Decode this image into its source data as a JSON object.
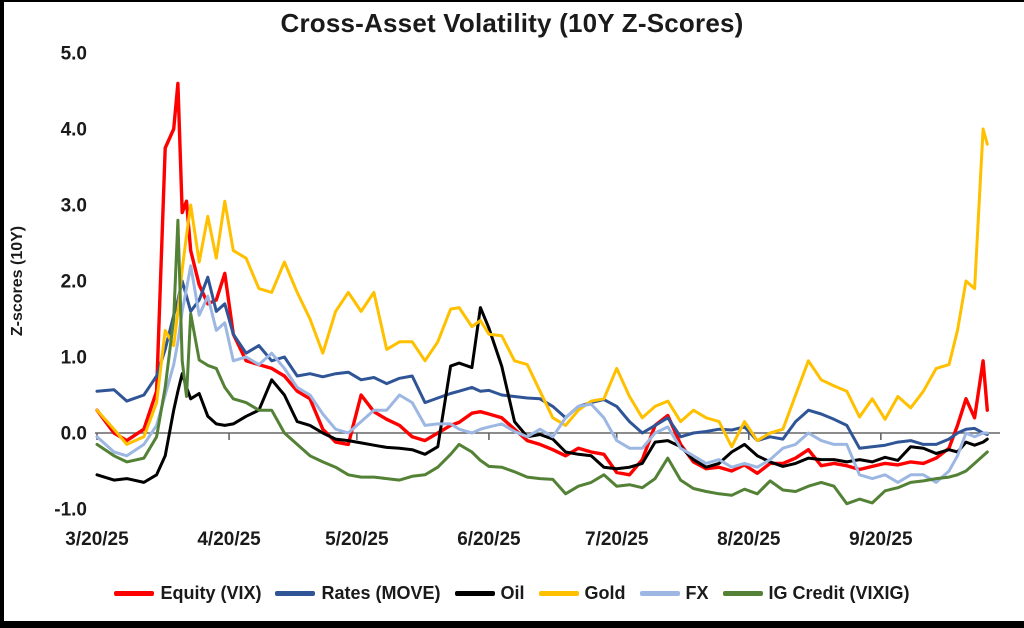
{
  "title": "Cross-Asset Volatility (10Y Z-Scores)",
  "y_axis": {
    "label": "Z-scores (10Y)",
    "ticks": [
      {
        "label": "5.0",
        "value": 5.0
      },
      {
        "label": "4.0",
        "value": 4.0
      },
      {
        "label": "3.0",
        "value": 3.0
      },
      {
        "label": "2.0",
        "value": 2.0
      },
      {
        "label": "1.0",
        "value": 1.0
      },
      {
        "label": "0.0",
        "value": 0.0
      },
      {
        "label": "-1.0",
        "value": -1.0
      }
    ]
  },
  "x_axis": {
    "ticks": [
      {
        "label": "3/20/25",
        "day": 0
      },
      {
        "label": "4/20/25",
        "day": 31
      },
      {
        "label": "5/20/25",
        "day": 61
      },
      {
        "label": "6/20/25",
        "day": 92
      },
      {
        "label": "7/20/25",
        "day": 122
      },
      {
        "label": "8/20/25",
        "day": 153
      },
      {
        "label": "9/20/25",
        "day": 184
      }
    ]
  },
  "colors": {
    "equity": "#FF0000",
    "rates": "#2F5597",
    "oil": "#000000",
    "gold": "#FFC000",
    "fx": "#9DB7E3",
    "ig_credit": "#538135",
    "zero_line": "#666666",
    "text": "#1a1a1a"
  },
  "chart_data": {
    "type": "line",
    "title": "Cross-Asset Volatility (10Y Z-Scores)",
    "ylabel": "Z-scores (10Y)",
    "ylim": [
      -1.0,
      5.0
    ],
    "grid": false,
    "zero_line": true,
    "legend_position": "bottom",
    "x_unit": "days since 3/20/25",
    "x_days": [
      0,
      4,
      7,
      11,
      14,
      16,
      18,
      19,
      20,
      21,
      22,
      24,
      26,
      28,
      30,
      32,
      35,
      38,
      41,
      44,
      47,
      50,
      53,
      56,
      59,
      62,
      65,
      68,
      71,
      74,
      77,
      80,
      83,
      85,
      88,
      90,
      92,
      95,
      98,
      101,
      104,
      107,
      110,
      113,
      116,
      119,
      122,
      125,
      128,
      131,
      134,
      137,
      140,
      143,
      146,
      149,
      152,
      155,
      158,
      161,
      164,
      167,
      170,
      173,
      176,
      179,
      182,
      185,
      188,
      191,
      194,
      197,
      200,
      202,
      204,
      206,
      208,
      209
    ],
    "series": [
      {
        "name": "Equity (VIX)",
        "color": "#FF0000",
        "values": [
          0.3,
          0.0,
          -0.1,
          0.05,
          0.55,
          3.75,
          4.0,
          4.6,
          2.9,
          3.05,
          2.4,
          1.95,
          1.7,
          1.75,
          2.1,
          1.3,
          0.95,
          0.9,
          0.85,
          0.75,
          0.55,
          0.45,
          0.05,
          -0.12,
          -0.15,
          0.5,
          0.28,
          0.18,
          0.1,
          -0.05,
          -0.1,
          0.0,
          0.1,
          0.14,
          0.26,
          0.28,
          0.25,
          0.2,
          0.05,
          -0.1,
          -0.15,
          -0.22,
          -0.3,
          -0.2,
          -0.25,
          -0.28,
          -0.52,
          -0.55,
          -0.35,
          0.1,
          0.23,
          -0.15,
          -0.38,
          -0.47,
          -0.45,
          -0.5,
          -0.42,
          -0.53,
          -0.4,
          -0.4,
          -0.33,
          -0.22,
          -0.43,
          -0.4,
          -0.43,
          -0.48,
          -0.44,
          -0.4,
          -0.42,
          -0.38,
          -0.4,
          -0.33,
          -0.2,
          0.1,
          0.45,
          0.2,
          0.95,
          0.3
        ]
      },
      {
        "name": "Rates (MOVE)",
        "color": "#2F5597",
        "values": [
          0.55,
          0.57,
          0.42,
          0.5,
          0.75,
          1.1,
          1.55,
          1.75,
          2.0,
          1.8,
          1.6,
          1.75,
          2.05,
          1.6,
          1.7,
          1.3,
          1.05,
          1.15,
          0.95,
          1.0,
          0.75,
          0.78,
          0.74,
          0.78,
          0.8,
          0.7,
          0.73,
          0.65,
          0.72,
          0.75,
          0.4,
          0.46,
          0.52,
          0.55,
          0.6,
          0.55,
          0.56,
          0.5,
          0.48,
          0.46,
          0.45,
          0.35,
          0.2,
          0.35,
          0.4,
          0.44,
          0.35,
          0.15,
          0.0,
          0.1,
          0.2,
          -0.05,
          0.0,
          0.02,
          0.05,
          0.04,
          0.08,
          -0.1,
          -0.05,
          -0.08,
          0.15,
          0.3,
          0.25,
          0.18,
          0.1,
          -0.2,
          -0.18,
          -0.16,
          -0.12,
          -0.1,
          -0.15,
          -0.15,
          -0.08,
          0.0,
          0.05,
          0.06,
          0.0,
          -0.02
        ]
      },
      {
        "name": "Oil",
        "color": "#000000",
        "values": [
          -0.55,
          -0.62,
          -0.6,
          -0.65,
          -0.55,
          -0.3,
          0.3,
          0.55,
          0.78,
          0.6,
          0.45,
          0.52,
          0.22,
          0.12,
          0.1,
          0.12,
          0.22,
          0.3,
          0.7,
          0.5,
          0.15,
          0.1,
          0.0,
          -0.08,
          -0.1,
          -0.13,
          -0.16,
          -0.19,
          -0.2,
          -0.22,
          -0.28,
          -0.18,
          0.88,
          0.92,
          0.86,
          1.65,
          1.38,
          0.88,
          0.15,
          -0.05,
          -0.02,
          -0.08,
          -0.25,
          -0.28,
          -0.3,
          -0.45,
          -0.47,
          -0.45,
          -0.4,
          -0.12,
          -0.1,
          -0.18,
          -0.35,
          -0.45,
          -0.4,
          -0.25,
          -0.15,
          -0.3,
          -0.38,
          -0.44,
          -0.4,
          -0.33,
          -0.35,
          -0.35,
          -0.38,
          -0.35,
          -0.38,
          -0.32,
          -0.36,
          -0.18,
          -0.2,
          -0.27,
          -0.22,
          -0.25,
          -0.12,
          -0.16,
          -0.12,
          -0.08
        ]
      },
      {
        "name": "Gold",
        "color": "#FFC000",
        "values": [
          0.3,
          0.05,
          -0.15,
          -0.05,
          0.4,
          1.35,
          1.15,
          1.6,
          2.15,
          2.6,
          3.0,
          2.25,
          2.85,
          2.3,
          3.05,
          2.4,
          2.3,
          1.9,
          1.85,
          2.25,
          1.85,
          1.5,
          1.05,
          1.6,
          1.85,
          1.6,
          1.85,
          1.1,
          1.2,
          1.2,
          0.95,
          1.2,
          1.63,
          1.65,
          1.4,
          1.48,
          1.3,
          1.28,
          0.95,
          0.9,
          0.55,
          0.2,
          0.1,
          0.3,
          0.42,
          0.45,
          0.85,
          0.48,
          0.2,
          0.35,
          0.42,
          0.15,
          0.3,
          0.2,
          0.15,
          -0.18,
          0.15,
          -0.1,
          0.0,
          0.05,
          0.5,
          0.95,
          0.7,
          0.62,
          0.55,
          0.21,
          0.45,
          0.18,
          0.48,
          0.33,
          0.55,
          0.85,
          0.9,
          1.35,
          2.0,
          1.9,
          4.0,
          3.8
        ]
      },
      {
        "name": "FX",
        "color": "#9DB7E3",
        "values": [
          -0.05,
          -0.25,
          -0.3,
          -0.15,
          0.1,
          0.5,
          0.9,
          1.2,
          1.6,
          1.9,
          2.2,
          1.55,
          1.8,
          1.35,
          1.45,
          0.95,
          1.0,
          0.9,
          1.05,
          0.85,
          0.6,
          0.5,
          0.25,
          0.05,
          0.0,
          0.15,
          0.3,
          0.3,
          0.5,
          0.4,
          0.1,
          0.12,
          0.12,
          0.05,
          0.0,
          0.05,
          0.08,
          0.12,
          0.02,
          -0.05,
          0.05,
          -0.05,
          0.2,
          0.35,
          0.38,
          0.2,
          -0.1,
          -0.2,
          -0.2,
          0.0,
          0.08,
          -0.2,
          -0.3,
          -0.4,
          -0.35,
          -0.45,
          -0.4,
          -0.45,
          -0.35,
          -0.2,
          -0.15,
          0.0,
          -0.1,
          -0.15,
          -0.15,
          -0.55,
          -0.6,
          -0.55,
          -0.65,
          -0.55,
          -0.55,
          -0.65,
          -0.5,
          -0.3,
          0.0,
          -0.05,
          0.0,
          0.0
        ]
      },
      {
        "name": "IG Credit (VIXIG)",
        "color": "#538135",
        "values": [
          -0.15,
          -0.3,
          -0.38,
          -0.33,
          -0.05,
          0.6,
          1.5,
          2.8,
          0.95,
          0.48,
          1.57,
          0.96,
          0.89,
          0.85,
          0.6,
          0.45,
          0.4,
          0.3,
          0.3,
          0.0,
          -0.15,
          -0.3,
          -0.38,
          -0.45,
          -0.55,
          -0.58,
          -0.58,
          -0.6,
          -0.62,
          -0.57,
          -0.55,
          -0.45,
          -0.28,
          -0.15,
          -0.25,
          -0.36,
          -0.44,
          -0.45,
          -0.51,
          -0.58,
          -0.6,
          -0.61,
          -0.8,
          -0.7,
          -0.65,
          -0.55,
          -0.7,
          -0.68,
          -0.72,
          -0.6,
          -0.33,
          -0.62,
          -0.73,
          -0.77,
          -0.8,
          -0.82,
          -0.74,
          -0.8,
          -0.63,
          -0.75,
          -0.77,
          -0.7,
          -0.65,
          -0.7,
          -0.93,
          -0.87,
          -0.92,
          -0.76,
          -0.72,
          -0.65,
          -0.63,
          -0.6,
          -0.58,
          -0.55,
          -0.5,
          -0.4,
          -0.3,
          -0.25
        ]
      }
    ]
  }
}
